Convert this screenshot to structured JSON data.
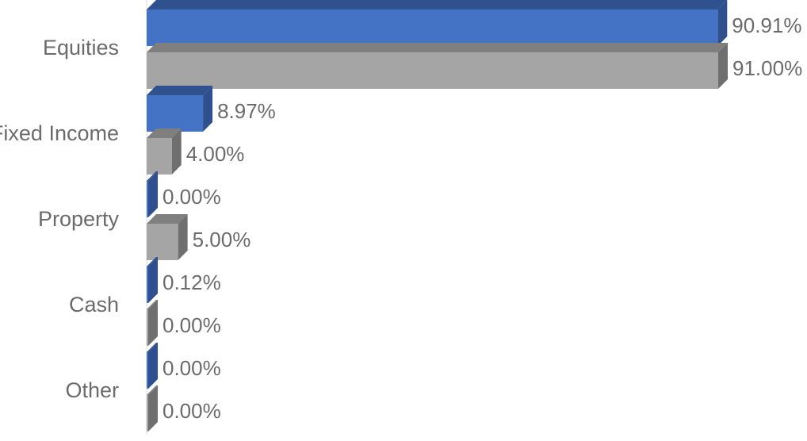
{
  "chart_data": {
    "type": "bar",
    "orientation": "horizontal",
    "style": "3d",
    "categories": [
      "Equities",
      "Fixed Income",
      "Property",
      "Cash",
      "Other"
    ],
    "series": [
      {
        "values": [
          90.91,
          8.97,
          0.0,
          0.12,
          0.0
        ],
        "labels": [
          "90.91%",
          "8.97%",
          "0.00%",
          "0.12%",
          "0.00%"
        ],
        "color": "#4472c4",
        "side_color": "#2f4f8f",
        "top_color": "#2f528f"
      },
      {
        "values": [
          91.0,
          4.0,
          5.0,
          0.0,
          0.0
        ],
        "labels": [
          "91.00%",
          "4.00%",
          "5.00%",
          "0.00%",
          "0.00%"
        ],
        "color": "#a5a5a5",
        "side_color": "#6f6f6f",
        "top_color": "#7f7f7f"
      }
    ],
    "xlim": [
      0,
      91
    ],
    "grid": false,
    "legend": "none",
    "axis_line_color": "#d9d9d9"
  }
}
